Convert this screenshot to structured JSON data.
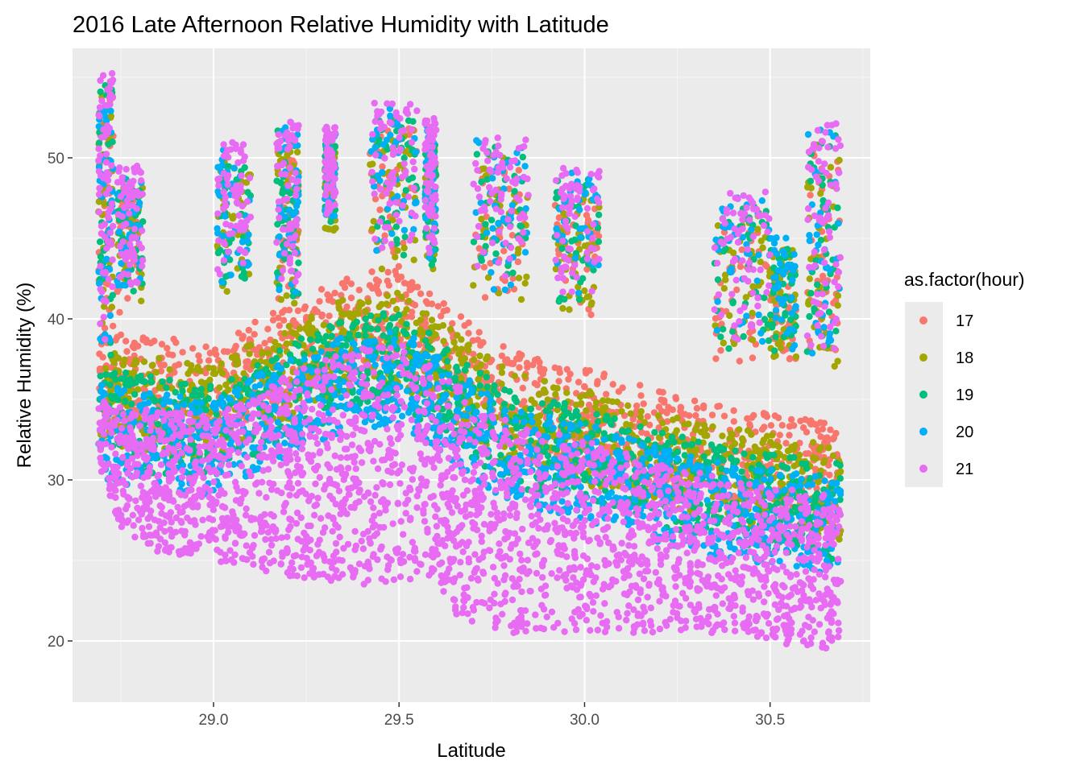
{
  "chart_data": {
    "type": "scatter",
    "title": "2016 Late Afternoon Relative Humidity with Latitude",
    "xlabel": "Latitude",
    "ylabel": "Relative Humidity (%)",
    "xlim": [
      28.62,
      30.77
    ],
    "ylim": [
      16.2,
      56.8
    ],
    "x_ticks": [
      29.0,
      29.5,
      30.0,
      30.5
    ],
    "x_tick_labels": [
      "29.0",
      "29.5",
      "30.0",
      "30.5"
    ],
    "y_ticks": [
      20,
      30,
      40,
      50
    ],
    "y_tick_labels": [
      "20",
      "30",
      "40",
      "50"
    ],
    "grid": true,
    "background": "#ebebeb",
    "legend": {
      "title": "as.factor(hour)",
      "placement": "right",
      "entries": [
        "17",
        "18",
        "19",
        "20",
        "21"
      ]
    },
    "series": [
      {
        "name": "17",
        "color": "#F8766D",
        "offset": 4.5
      },
      {
        "name": "18",
        "color": "#A3A500",
        "offset": 3.2
      },
      {
        "name": "19",
        "color": "#00BF7D",
        "offset": 2.0
      },
      {
        "name": "20",
        "color": "#00B0F6",
        "offset": 1.0
      },
      {
        "name": "21",
        "color": "#E76BF3",
        "offset": 0.0
      }
    ],
    "baseline_top_curve": [
      [
        28.69,
        35.0
      ],
      [
        28.8,
        34.5
      ],
      [
        29.0,
        34.0
      ],
      [
        29.2,
        36.5
      ],
      [
        29.35,
        38.0
      ],
      [
        29.5,
        38.5
      ],
      [
        29.65,
        36.0
      ],
      [
        29.8,
        33.5
      ],
      [
        30.0,
        32.5
      ],
      [
        30.2,
        31.0
      ],
      [
        30.4,
        30.0
      ],
      [
        30.55,
        29.5
      ],
      [
        30.69,
        29.0
      ]
    ],
    "baseline_bottom_curve": [
      [
        28.69,
        31.0
      ],
      [
        28.75,
        27.0
      ],
      [
        28.85,
        25.5
      ],
      [
        29.0,
        25.0
      ],
      [
        29.2,
        24.0
      ],
      [
        29.4,
        23.5
      ],
      [
        29.6,
        24.0
      ],
      [
        29.65,
        21.5
      ],
      [
        29.8,
        20.5
      ],
      [
        30.0,
        20.5
      ],
      [
        30.2,
        20.5
      ],
      [
        30.4,
        20.5
      ],
      [
        30.55,
        19.5
      ],
      [
        30.69,
        19.5
      ]
    ],
    "high_clusters": [
      {
        "x": [
          28.69,
          28.73
        ],
        "y": [
          38.0,
          55.3
        ],
        "hours": [
          "17",
          "18",
          "19",
          "20",
          "21"
        ]
      },
      {
        "x": [
          28.74,
          28.81
        ],
        "y": [
          42.0,
          49.5
        ],
        "hours": [
          "17",
          "18",
          "19",
          "20",
          "21"
        ]
      },
      {
        "x": [
          29.01,
          29.1
        ],
        "y": [
          42.5,
          51.0
        ],
        "hours": [
          "18",
          "19",
          "20",
          "21"
        ]
      },
      {
        "x": [
          29.17,
          29.23
        ],
        "y": [
          42.0,
          52.5
        ],
        "hours": [
          "17",
          "18",
          "19",
          "20",
          "21"
        ]
      },
      {
        "x": [
          29.3,
          29.33
        ],
        "y": [
          46.5,
          52.0
        ],
        "hours": [
          "18",
          "19",
          "20",
          "21"
        ]
      },
      {
        "x": [
          29.42,
          29.55
        ],
        "y": [
          44.0,
          53.5
        ],
        "hours": [
          "17",
          "18",
          "19",
          "20",
          "21"
        ]
      },
      {
        "x": [
          29.57,
          29.6
        ],
        "y": [
          44.0,
          52.5
        ],
        "hours": [
          "18",
          "19",
          "20",
          "21"
        ]
      },
      {
        "x": [
          29.7,
          29.85
        ],
        "y": [
          42.0,
          51.5
        ],
        "hours": [
          "17",
          "18",
          "19",
          "20",
          "21"
        ]
      },
      {
        "x": [
          29.92,
          30.04
        ],
        "y": [
          41.5,
          49.5
        ],
        "hours": [
          "17",
          "18",
          "19",
          "20",
          "21"
        ]
      },
      {
        "x": [
          30.35,
          30.5
        ],
        "y": [
          38.5,
          48.0
        ],
        "hours": [
          "17",
          "18",
          "19",
          "20",
          "21"
        ]
      },
      {
        "x": [
          30.5,
          30.57
        ],
        "y": [
          38.5,
          45.5
        ],
        "hours": [
          "17",
          "18",
          "19",
          "20"
        ]
      },
      {
        "x": [
          30.6,
          30.69
        ],
        "y": [
          38.0,
          52.2
        ],
        "hours": [
          "17",
          "18",
          "19",
          "20",
          "21"
        ]
      }
    ]
  }
}
